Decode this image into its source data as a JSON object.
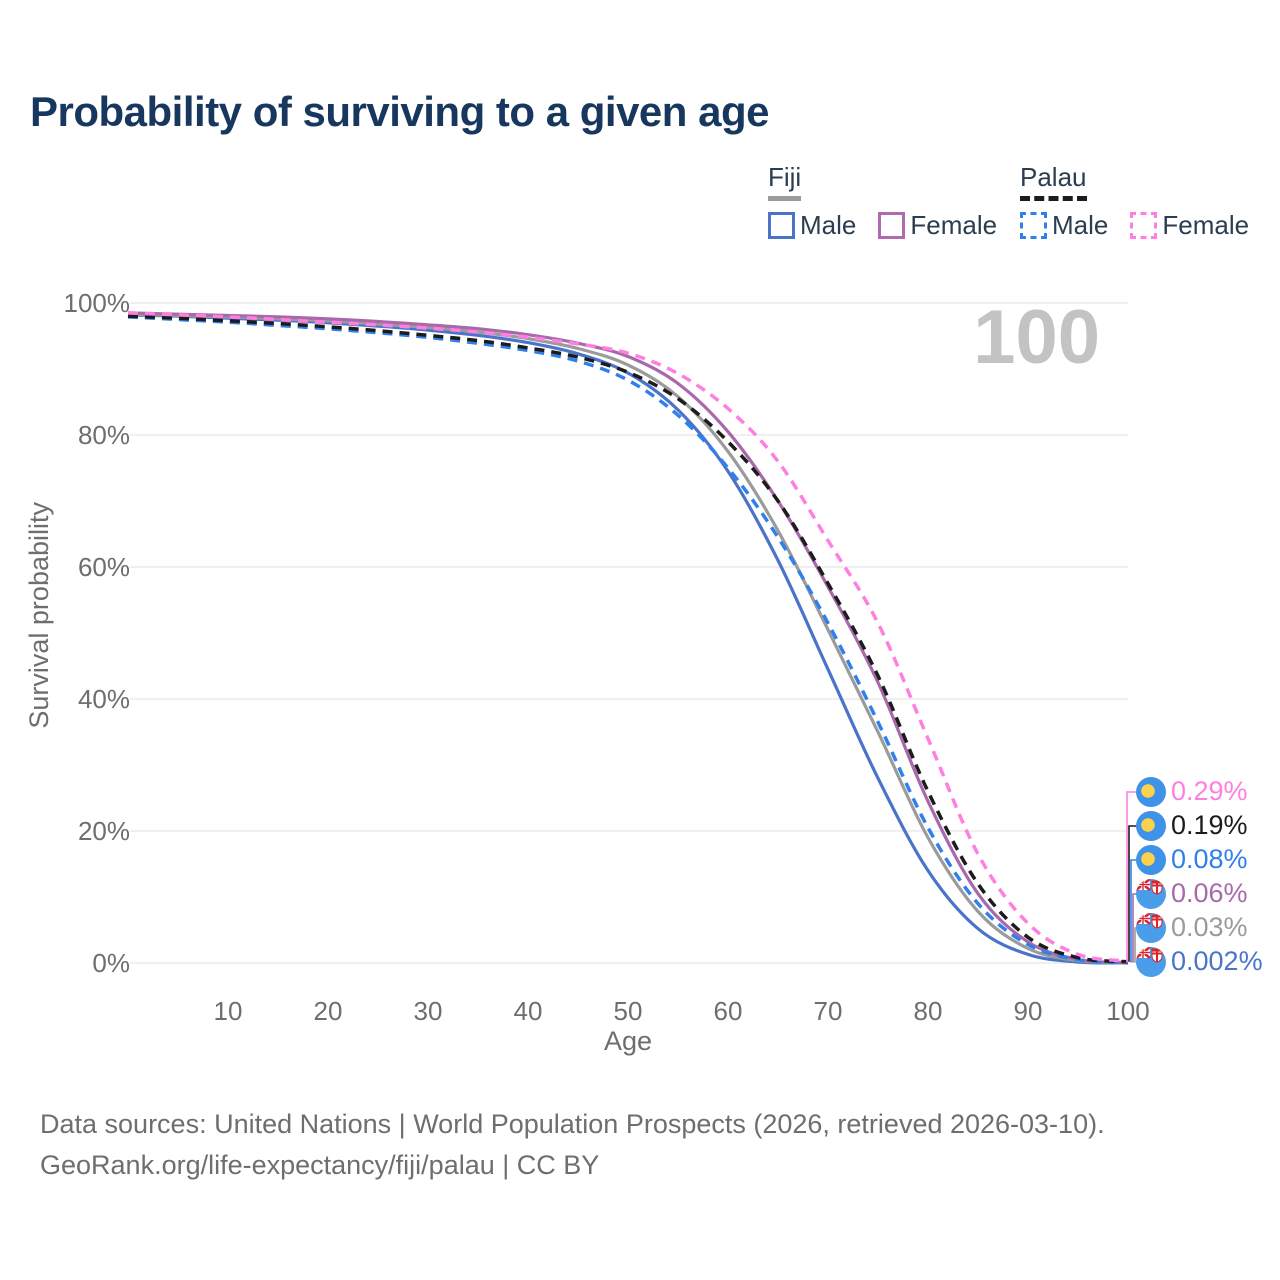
{
  "title": "Probability of surviving to a given age",
  "watermark_age": "100",
  "legend": {
    "groups": [
      {
        "name": "Fiji",
        "underline_color": "#9b9b9b",
        "underline_style": "solid",
        "items": [
          {
            "label": "Male",
            "color": "#4a74c9",
            "style": "solid"
          },
          {
            "label": "Female",
            "color": "#b06ab0",
            "style": "solid"
          }
        ]
      },
      {
        "name": "Palau",
        "underline_color": "#1c1c1c",
        "underline_style": "dashed",
        "items": [
          {
            "label": "Male",
            "color": "#2f80ed",
            "style": "dashed"
          },
          {
            "label": "Female",
            "color": "#ff7fe1",
            "style": "dashed"
          }
        ]
      }
    ]
  },
  "chart_data": {
    "type": "line",
    "title": "Probability of surviving to a given age",
    "xlabel": "Age",
    "ylabel": "Survival probability",
    "xlim": [
      0,
      100
    ],
    "ylim": [
      0,
      100
    ],
    "grid": true,
    "legend_position": "top-right",
    "x_ticks": [
      {
        "v": 10,
        "label": "10"
      },
      {
        "v": 20,
        "label": "20"
      },
      {
        "v": 30,
        "label": "30"
      },
      {
        "v": 40,
        "label": "40"
      },
      {
        "v": 50,
        "label": "50"
      },
      {
        "v": 60,
        "label": "60"
      },
      {
        "v": 70,
        "label": "70"
      },
      {
        "v": 80,
        "label": "80"
      },
      {
        "v": 90,
        "label": "90"
      },
      {
        "v": 100,
        "label": "100"
      }
    ],
    "y_ticks": [
      {
        "v": 100,
        "label": "100%"
      },
      {
        "v": 80,
        "label": "80%"
      },
      {
        "v": 60,
        "label": "60%"
      },
      {
        "v": 40,
        "label": "40%"
      },
      {
        "v": 20,
        "label": "20%"
      },
      {
        "v": 0,
        "label": "0%"
      }
    ],
    "x": [
      0,
      5,
      10,
      15,
      20,
      25,
      30,
      35,
      40,
      45,
      50,
      55,
      60,
      65,
      70,
      75,
      80,
      85,
      90,
      95,
      100
    ],
    "series": [
      {
        "id": "fiji-male",
        "country": "Fiji",
        "sex": "Male",
        "color": "#4a74c9",
        "dash": "solid",
        "flag_icon": "fiji-flag-icon",
        "end_label": "0.002%",
        "values": [
          98.2,
          98.0,
          97.7,
          97.4,
          97.0,
          96.5,
          95.9,
          95.1,
          94.0,
          92.3,
          89.4,
          83.8,
          74.5,
          61.0,
          44.5,
          28.0,
          14.0,
          5.2,
          1.3,
          0.15,
          0.002
        ]
      },
      {
        "id": "fiji-total",
        "country": "Fiji",
        "sex": "Total",
        "color": "#9b9b9b",
        "dash": "solid",
        "flag_icon": "fiji-flag-icon",
        "end_label": "0.03%",
        "values": [
          98.3,
          98.1,
          97.9,
          97.6,
          97.3,
          96.8,
          96.3,
          95.6,
          94.6,
          93.1,
          90.6,
          85.8,
          77.5,
          65.5,
          50.5,
          35.0,
          19.0,
          7.8,
          2.2,
          0.35,
          0.03
        ]
      },
      {
        "id": "fiji-female",
        "country": "Fiji",
        "sex": "Female",
        "color": "#a869ab",
        "dash": "solid",
        "flag_icon": "fiji-flag-icon",
        "end_label": "0.06%",
        "values": [
          98.5,
          98.3,
          98.1,
          97.9,
          97.6,
          97.2,
          96.7,
          96.1,
          95.2,
          93.9,
          91.9,
          87.8,
          80.5,
          70.0,
          57.0,
          42.5,
          24.5,
          10.5,
          3.2,
          0.55,
          0.06
        ]
      },
      {
        "id": "palau-male",
        "country": "Palau",
        "sex": "Male",
        "color": "#2f80ed",
        "dash": "dashed",
        "flag_icon": "palau-flag-icon",
        "end_label": "0.08%",
        "values": [
          97.9,
          97.5,
          97.1,
          96.6,
          96.1,
          95.5,
          94.8,
          93.9,
          92.8,
          91.2,
          88.3,
          83.0,
          75.0,
          64.5,
          51.5,
          36.5,
          20.5,
          9.0,
          2.8,
          0.5,
          0.08
        ]
      },
      {
        "id": "palau-total",
        "country": "Palau",
        "sex": "Total",
        "color": "#1c1c1c",
        "dash": "dashed",
        "flag_icon": "palau-flag-icon",
        "end_label": "0.19%",
        "values": [
          98.0,
          97.7,
          97.3,
          96.9,
          96.4,
          95.8,
          95.1,
          94.3,
          93.2,
          91.8,
          89.5,
          85.5,
          79.0,
          70.0,
          57.5,
          43.5,
          26.0,
          12.0,
          3.9,
          0.8,
          0.19
        ]
      },
      {
        "id": "palau-female",
        "country": "Palau",
        "sex": "Female",
        "color": "#ff7fe1",
        "dash": "dashed",
        "flag_icon": "palau-flag-icon",
        "end_label": "0.29%",
        "values": [
          98.5,
          98.2,
          97.9,
          97.5,
          97.1,
          96.7,
          96.2,
          95.6,
          94.8,
          93.8,
          92.4,
          89.3,
          84.0,
          76.0,
          64.0,
          51.5,
          34.0,
          16.5,
          6.0,
          1.3,
          0.29
        ]
      }
    ]
  },
  "colors": {
    "grid": "#eaeaea",
    "axis_text": "#6e6e6e",
    "title_text": "#17375e",
    "watermark": "#c3c3c3",
    "palau_flag_blue": "#3e92e8",
    "palau_flag_yellow": "#fcd24c",
    "fiji_flag_blue": "#4a9de8",
    "flag_red": "#d9262e"
  },
  "footer": {
    "line1": "Data sources: United Nations | World Population Prospects (2026, retrieved 2026-03-10).",
    "line2": "GeoRank.org/life-expectancy/fiji/palau | CC BY"
  }
}
